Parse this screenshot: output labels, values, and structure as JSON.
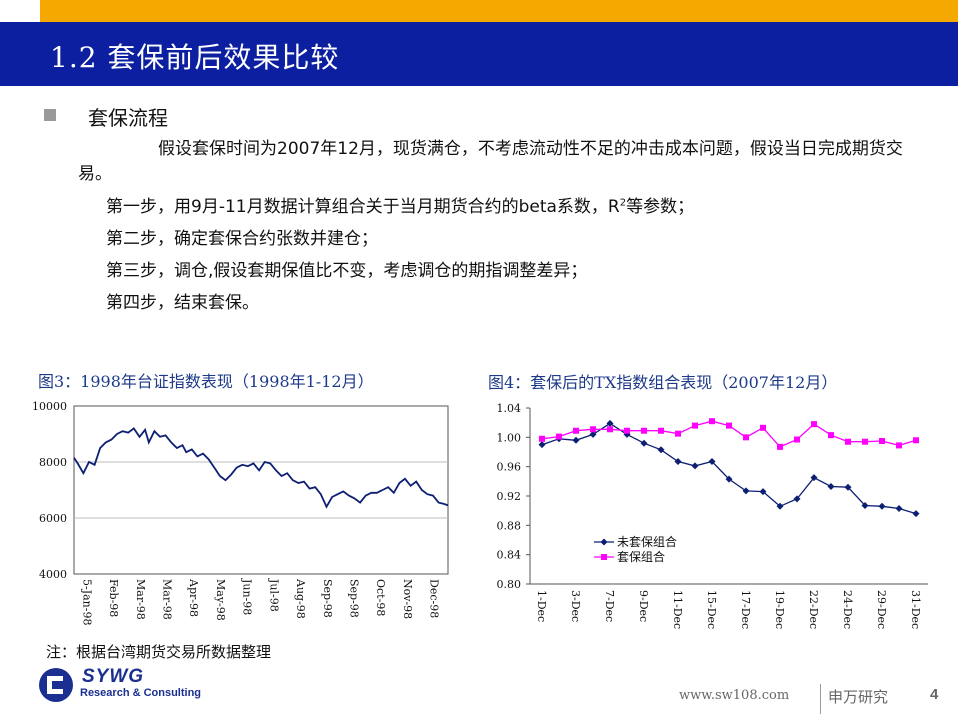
{
  "slide": {
    "title": "1.2 套保前后效果比较",
    "section_title": "套保流程",
    "paragraph": "假设套保时间为2007年12月，现货满仓，不考虑流动性不足的冲击成本问题，假设当日完成期货交易。",
    "steps": {
      "s1_pre": "第一步，用9月-11月数据计算组合关于当月期货合约的beta系数，R",
      "s1_sup": "2",
      "s1_post": "等参数；",
      "s2": "第二步，确定套保合约张数并建仓；",
      "s3": "第三步，调仓,假设套期保值比不变，考虑调仓的期指调整差异；",
      "s4": "第四步，结束套保。"
    },
    "note": "注：根据台湾期货交易所数据整理",
    "footer": {
      "logo_text": "SYWG",
      "logo_subtext": "Research & Consulting",
      "url": "www.sw108.com",
      "brand": "申万研究",
      "page": "4"
    },
    "colors": {
      "title_bar": "#0b1fa0",
      "accent_orange": "#f5a800",
      "series_unhedged": "#0d1f73",
      "series_hedged": "#ff00ff"
    }
  },
  "chart_data": [
    {
      "type": "line",
      "title": "图3：1998年台证指数表现（1998年1-12月）",
      "ylim": [
        4000,
        10000
      ],
      "yticks": [
        "10000",
        "8000",
        "6000",
        "4000"
      ],
      "grid": "horizontal",
      "x_tick_labels": [
        "5-Jan-98",
        "Feb-98",
        "Mar-98",
        "Mar-98",
        "Apr-98",
        "May-98",
        "Jun-98",
        "Jul-98",
        "Aug-98",
        "Sep-98",
        "Sep-98",
        "Oct-98",
        "Nov-98",
        "Dec-98"
      ],
      "series": [
        {
          "color": "#0d1f73",
          "x": [
            0.0,
            0.01,
            0.025,
            0.04,
            0.055,
            0.07,
            0.085,
            0.1,
            0.115,
            0.13,
            0.145,
            0.16,
            0.175,
            0.19,
            0.2,
            0.215,
            0.23,
            0.245,
            0.26,
            0.275,
            0.29,
            0.3,
            0.315,
            0.33,
            0.345,
            0.36,
            0.375,
            0.39,
            0.405,
            0.42,
            0.435,
            0.45,
            0.465,
            0.48,
            0.495,
            0.51,
            0.525,
            0.54,
            0.555,
            0.57,
            0.585,
            0.6,
            0.615,
            0.63,
            0.645,
            0.66,
            0.675,
            0.69,
            0.705,
            0.72,
            0.735,
            0.75,
            0.765,
            0.78,
            0.795,
            0.81,
            0.825,
            0.84,
            0.855,
            0.87,
            0.885,
            0.9,
            0.915,
            0.93,
            0.945,
            0.96,
            0.975,
            0.99,
            1.0
          ],
          "values": [
            8150,
            7950,
            7600,
            8000,
            7900,
            8500,
            8700,
            8800,
            9000,
            9100,
            9050,
            9200,
            8900,
            9150,
            8700,
            9100,
            8900,
            8950,
            8700,
            8500,
            8600,
            8350,
            8450,
            8200,
            8300,
            8100,
            7800,
            7500,
            7350,
            7550,
            7800,
            7900,
            7850,
            7950,
            7700,
            8000,
            7950,
            7700,
            7500,
            7600,
            7350,
            7250,
            7300,
            7050,
            7100,
            6850,
            6400,
            6750,
            6850,
            6950,
            6800,
            6700,
            6550,
            6800,
            6900,
            6900,
            7000,
            7100,
            6900,
            7250,
            7400,
            7150,
            7300,
            7000,
            6850,
            6800,
            6550,
            6500,
            6450
          ]
        }
      ]
    },
    {
      "type": "line",
      "title": "图4：套保后的TX指数组合表现（2007年12月）",
      "ylim": [
        0.8,
        1.04
      ],
      "yticks": [
        "1.04",
        "1.00",
        "0.96",
        "0.92",
        "0.88",
        "0.84",
        "0.80"
      ],
      "grid": "none",
      "legend_position": "bottom-left",
      "categories": [
        "1-Dec",
        "",
        "3-Dec",
        "",
        "7-Dec",
        "",
        "9-Dec",
        "",
        "11-Dec",
        "",
        "15-Dec",
        "",
        "17-Dec",
        "",
        "19-Dec",
        "",
        "22-Dec",
        "",
        "24-Dec",
        "",
        "29-Dec",
        "",
        "31-Dec"
      ],
      "x_tick_labels": [
        "1-Dec",
        "3-Dec",
        "7-Dec",
        "9-Dec",
        "11-Dec",
        "15-Dec",
        "17-Dec",
        "19-Dec",
        "22-Dec",
        "24-Dec",
        "29-Dec",
        "31-Dec"
      ],
      "series": [
        {
          "name": "未套保组合",
          "color": "#0d1f73",
          "marker": "diamond",
          "values": [
            0.99,
            0.998,
            0.996,
            1.004,
            1.019,
            1.004,
            0.992,
            0.983,
            0.967,
            0.961,
            0.967,
            0.943,
            0.927,
            0.926,
            0.906,
            0.916,
            0.945,
            0.933,
            0.932,
            0.907,
            0.906,
            0.903,
            0.896
          ]
        },
        {
          "name": "套保组合",
          "color": "#ff00ff",
          "marker": "square",
          "values": [
            0.998,
            1.001,
            1.009,
            1.011,
            1.011,
            1.009,
            1.009,
            1.009,
            1.005,
            1.016,
            1.022,
            1.016,
            1.0,
            1.013,
            0.987,
            0.997,
            1.018,
            1.003,
            0.994,
            0.994,
            0.995,
            0.989,
            0.996
          ]
        }
      ]
    }
  ]
}
